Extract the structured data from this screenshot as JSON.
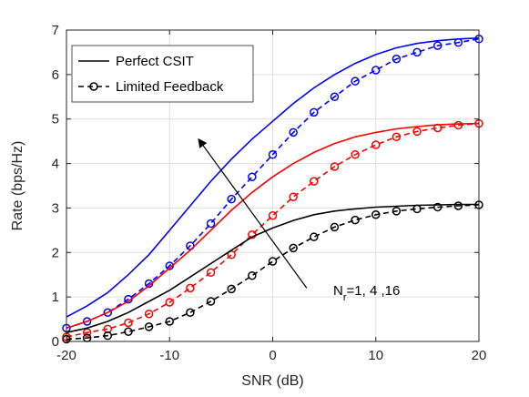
{
  "chart_data": {
    "type": "line",
    "xlabel": "SNR (dB)",
    "ylabel": "Rate (bps/Hz)",
    "xlim": [
      -20,
      20
    ],
    "ylim": [
      0,
      7
    ],
    "xticks": [
      -20,
      -10,
      0,
      10,
      20
    ],
    "yticks": [
      0,
      1,
      2,
      3,
      4,
      5,
      6,
      7
    ],
    "grid": true,
    "legend": {
      "placement": "top-left",
      "entries": [
        {
          "label": "Perfect CSIT",
          "style": "solid",
          "marker": "none"
        },
        {
          "label": "Limited Feedback",
          "style": "dashed",
          "marker": "circle"
        }
      ]
    },
    "annotation": {
      "text_main": "N",
      "text_sub": "r",
      "text_rest": "=1, 4 ,16",
      "arrow_from": [
        3.3,
        1.2
      ],
      "arrow_to": [
        -7.2,
        4.55
      ]
    },
    "series": [
      {
        "color": "#0000ff",
        "style": "solid",
        "x": [
          -20,
          -18,
          -16,
          -14,
          -12,
          -10,
          -8,
          -6,
          -4,
          -2,
          0,
          2,
          4,
          6,
          8,
          10,
          12,
          14,
          16,
          18,
          20
        ],
        "values": [
          0.55,
          0.8,
          1.1,
          1.5,
          1.95,
          2.5,
          3.05,
          3.6,
          4.1,
          4.55,
          4.95,
          5.35,
          5.7,
          6.0,
          6.25,
          6.45,
          6.6,
          6.7,
          6.76,
          6.8,
          6.82
        ]
      },
      {
        "color": "#0000ff",
        "style": "dashed",
        "marker": "circle",
        "x": [
          -20,
          -18,
          -16,
          -14,
          -12,
          -10,
          -8,
          -6,
          -4,
          -2,
          0,
          2,
          4,
          6,
          8,
          10,
          12,
          14,
          16,
          18,
          20
        ],
        "values": [
          0.3,
          0.45,
          0.65,
          0.95,
          1.3,
          1.7,
          2.15,
          2.65,
          3.2,
          3.7,
          4.2,
          4.7,
          5.15,
          5.5,
          5.85,
          6.1,
          6.35,
          6.5,
          6.65,
          6.72,
          6.8
        ]
      },
      {
        "color": "#ff0000",
        "style": "solid",
        "x": [
          -20,
          -18,
          -16,
          -14,
          -12,
          -10,
          -8,
          -6,
          -4,
          -2,
          0,
          2,
          4,
          6,
          8,
          10,
          12,
          14,
          16,
          18,
          20
        ],
        "values": [
          0.3,
          0.45,
          0.65,
          0.9,
          1.25,
          1.65,
          2.05,
          2.5,
          2.95,
          3.35,
          3.7,
          4.0,
          4.25,
          4.45,
          4.6,
          4.7,
          4.78,
          4.83,
          4.87,
          4.89,
          4.9
        ]
      },
      {
        "color": "#ff0000",
        "style": "dashed",
        "marker": "circle",
        "x": [
          -20,
          -18,
          -16,
          -14,
          -12,
          -10,
          -8,
          -6,
          -4,
          -2,
          0,
          2,
          4,
          6,
          8,
          10,
          12,
          14,
          16,
          18,
          20
        ],
        "values": [
          0.1,
          0.2,
          0.28,
          0.42,
          0.62,
          0.88,
          1.2,
          1.55,
          1.95,
          2.4,
          2.83,
          3.25,
          3.6,
          3.93,
          4.2,
          4.42,
          4.6,
          4.72,
          4.8,
          4.86,
          4.9
        ]
      },
      {
        "color": "#000000",
        "style": "solid",
        "x": [
          -20,
          -18,
          -16,
          -14,
          -12,
          -10,
          -8,
          -6,
          -4,
          -2,
          0,
          2,
          4,
          6,
          8,
          10,
          12,
          14,
          16,
          18,
          20
        ],
        "values": [
          0.2,
          0.3,
          0.45,
          0.65,
          0.9,
          1.15,
          1.45,
          1.75,
          2.05,
          2.35,
          2.55,
          2.72,
          2.85,
          2.93,
          2.98,
          3.02,
          3.04,
          3.06,
          3.07,
          3.08,
          3.08
        ]
      },
      {
        "color": "#000000",
        "style": "dashed",
        "marker": "circle",
        "x": [
          -20,
          -18,
          -16,
          -14,
          -12,
          -10,
          -8,
          -6,
          -4,
          -2,
          0,
          2,
          4,
          6,
          8,
          10,
          12,
          14,
          16,
          18,
          20
        ],
        "values": [
          0.05,
          0.08,
          0.13,
          0.22,
          0.33,
          0.45,
          0.65,
          0.9,
          1.18,
          1.48,
          1.8,
          2.1,
          2.35,
          2.57,
          2.73,
          2.85,
          2.93,
          2.98,
          3.02,
          3.05,
          3.07
        ]
      }
    ]
  }
}
